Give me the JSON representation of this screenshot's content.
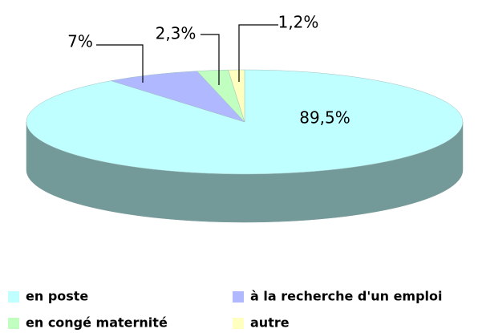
{
  "chart_data": {
    "type": "pie",
    "categories": [
      "en poste",
      "à la recherche d'un emploi",
      "en congé maternité",
      "autre"
    ],
    "values": [
      89.5,
      7,
      2.3,
      1.2
    ],
    "value_labels": [
      "89,5%",
      "7%",
      "2,3%",
      "1,2%"
    ],
    "colors": [
      "#c0ffff",
      "#b0b8ff",
      "#c0ffc0",
      "#ffffc0"
    ],
    "legend": "bottom"
  }
}
